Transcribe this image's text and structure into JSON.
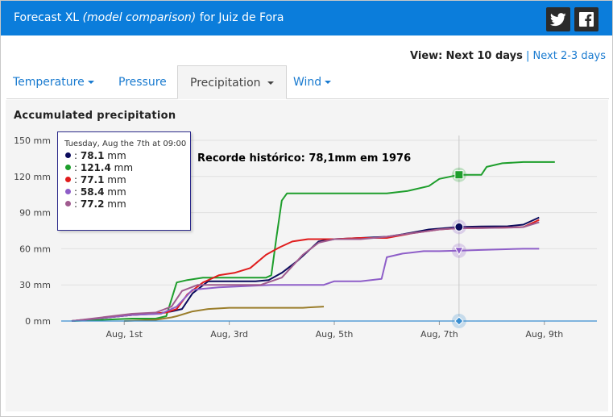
{
  "header": {
    "title_prefix": "Forecast XL",
    "title_italic": "(model comparison)",
    "title_suffix": "for Juiz de Fora",
    "share": [
      {
        "icon": "twitter-icon"
      },
      {
        "icon": "facebook-icon"
      }
    ]
  },
  "view": {
    "label": "View:",
    "current": "Next 10 days",
    "separator": "|",
    "alternate": "Next 2-3 days"
  },
  "tabs": [
    {
      "label": "Temperature",
      "has_caret": true
    },
    {
      "label": "Pressure",
      "has_caret": false
    },
    {
      "label": "Precipitation",
      "has_caret": true,
      "active": true
    },
    {
      "label": "Wind",
      "has_caret": true
    }
  ],
  "tooltip": {
    "header": "Tuesday, Aug the 7th at 09:00",
    "unit": "mm",
    "rows": [
      {
        "color": "#0b0b5c",
        "value": "78.1"
      },
      {
        "color": "#1e9e2c",
        "value": "121.4"
      },
      {
        "color": "#e01c1c",
        "value": "77.1"
      },
      {
        "color": "#8e5ec8",
        "value": "58.4"
      },
      {
        "color": "#a05b8f",
        "value": "77.2"
      }
    ]
  },
  "chart_data": {
    "type": "line",
    "title": "Accumulated precipitation",
    "annotation": "Recorde histórico: 78,1mm em 1976",
    "x_unit": "day of August",
    "xlim": [
      29.8,
      40.0
    ],
    "ylim": [
      0,
      150
    ],
    "y_ticks": [
      0,
      30,
      60,
      90,
      120,
      150
    ],
    "y_tick_labels": [
      "0 mm",
      "30 mm",
      "60 mm",
      "90 mm",
      "120 mm",
      "150 mm"
    ],
    "x_ticks": [
      31,
      33,
      35,
      37,
      39
    ],
    "x_tick_labels": [
      "Aug, 1st",
      "Aug, 3rd",
      "Aug, 5th",
      "Aug, 7th",
      "Aug, 9th"
    ],
    "crosshair_x": 37.375,
    "grid": "horizontal",
    "series": [
      {
        "color": "#0b0b5c",
        "x": [
          30.0,
          31.15,
          31.6,
          31.9,
          32.1,
          32.3,
          32.6,
          33.0,
          33.5,
          33.75,
          34.0,
          34.3,
          34.7,
          35.0,
          35.5,
          36.0,
          36.3,
          36.8,
          37.375,
          37.8,
          38.3,
          38.6,
          38.9
        ],
        "y": [
          0,
          5,
          6,
          8,
          10,
          23,
          33,
          33,
          33,
          34,
          40,
          50,
          66,
          68,
          69,
          70,
          72,
          76,
          78.1,
          78.5,
          78.7,
          80,
          86
        ]
      },
      {
        "color": "#1e9e2c",
        "x": [
          30.0,
          31.15,
          31.6,
          31.8,
          32.0,
          32.2,
          32.5,
          33.0,
          33.4,
          33.7,
          33.8,
          33.9,
          34.0,
          34.1,
          34.5,
          35.0,
          35.5,
          36.0,
          36.4,
          36.8,
          37.0,
          37.375,
          37.6,
          37.8,
          37.9,
          38.2,
          38.6,
          38.8,
          39.2
        ],
        "y": [
          0,
          2,
          2,
          4,
          32,
          34,
          36,
          36,
          36,
          36,
          38,
          70,
          100,
          106,
          106,
          106,
          106,
          106,
          108,
          112,
          118,
          121.4,
          121.4,
          121.4,
          128,
          131,
          132,
          132,
          132
        ]
      },
      {
        "color": "#e01c1c",
        "x": [
          30.0,
          31.15,
          31.5,
          31.8,
          32.0,
          32.2,
          32.5,
          32.8,
          33.1,
          33.4,
          33.7,
          33.95,
          34.2,
          34.5,
          35.0,
          35.5,
          36.0,
          36.5,
          37.0,
          37.375,
          37.7,
          38.2,
          38.6,
          38.9
        ],
        "y": [
          0,
          5,
          6,
          7,
          10,
          22,
          32,
          38,
          40,
          44,
          55,
          61,
          66,
          68,
          68,
          69,
          69,
          73,
          76,
          77.1,
          77.2,
          77.5,
          78,
          84
        ]
      },
      {
        "color": "#8e5ec8",
        "x": [
          30.0,
          31.15,
          31.7,
          32.0,
          32.3,
          32.8,
          33.3,
          33.8,
          34.3,
          34.8,
          35.0,
          35.5,
          35.7,
          35.9,
          36.0,
          36.3,
          36.7,
          37.0,
          37.375,
          37.8,
          38.2,
          38.6,
          38.9
        ],
        "y": [
          0,
          5,
          6,
          12,
          26,
          28,
          29,
          30,
          30,
          30,
          33,
          33,
          34,
          35,
          53,
          56,
          58,
          58,
          58.4,
          59,
          59.5,
          60,
          60
        ]
      },
      {
        "color": "#a05b8f",
        "x": [
          30.0,
          31.15,
          31.6,
          31.9,
          32.1,
          32.4,
          32.8,
          33.2,
          33.6,
          34.0,
          34.4,
          34.7,
          35.0,
          35.5,
          36.0,
          36.5,
          37.0,
          37.375,
          37.8,
          38.3,
          38.6,
          38.9
        ],
        "y": [
          0,
          6,
          7,
          12,
          25,
          30,
          30,
          30,
          30,
          36,
          55,
          65,
          68,
          68,
          70,
          73,
          76,
          77.2,
          77.2,
          77.5,
          78,
          82
        ]
      },
      {
        "color": "#9a7d2a",
        "x": [
          31.0,
          31.6,
          31.9,
          32.0,
          32.3,
          32.6,
          33.0,
          33.5,
          34.0,
          34.4,
          34.8
        ],
        "y": [
          0,
          1,
          3,
          4,
          8,
          10,
          11,
          11,
          11,
          11,
          12
        ]
      },
      {
        "color": "#3a8ed0",
        "x": [
          29.8,
          40.0
        ],
        "y": [
          0,
          0
        ]
      }
    ]
  }
}
